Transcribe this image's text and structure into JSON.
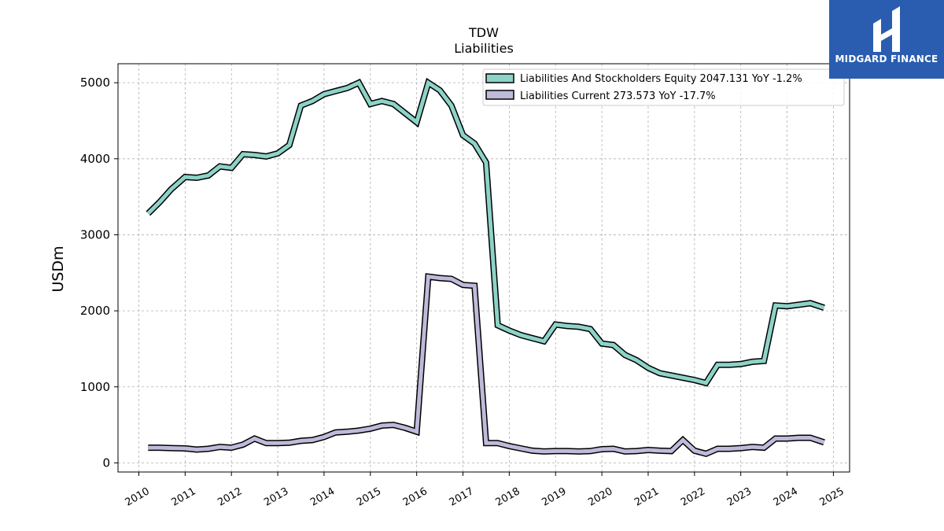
{
  "brand": {
    "name": "MIDGARD FINANCE",
    "color": "#2a5db0"
  },
  "chart_data": {
    "type": "line",
    "title": "TDW",
    "subtitle": "Liabilities",
    "xlabel": "",
    "ylabel": "USDm",
    "ylim": [
      -120,
      5250
    ],
    "xlim": [
      2009.55,
      2025.35
    ],
    "grid": true,
    "legend_position": "top-right",
    "x_ticks": [
      "2010",
      "2011",
      "2012",
      "2013",
      "2014",
      "2015",
      "2016",
      "2017",
      "2018",
      "2019",
      "2020",
      "2021",
      "2022",
      "2023",
      "2024",
      "2025"
    ],
    "y_ticks": [
      0,
      1000,
      2000,
      3000,
      4000,
      5000
    ],
    "series": [
      {
        "name": "Liabilities And Stockholders Equity",
        "legend_label": "Liabilities And Stockholders Equity  2047.131 YoY -1.2%",
        "color": "#8dd3c7",
        "x": [
          2010.2,
          2010.45,
          2010.7,
          2011.0,
          2011.25,
          2011.5,
          2011.75,
          2012.0,
          2012.25,
          2012.5,
          2012.75,
          2013.0,
          2013.25,
          2013.5,
          2013.75,
          2014.0,
          2014.25,
          2014.5,
          2014.75,
          2015.0,
          2015.25,
          2015.5,
          2015.75,
          2016.0,
          2016.25,
          2016.5,
          2016.75,
          2017.0,
          2017.25,
          2017.5,
          2017.75,
          2018.0,
          2018.25,
          2018.5,
          2018.75,
          2019.0,
          2019.25,
          2019.5,
          2019.75,
          2020.0,
          2020.25,
          2020.5,
          2020.75,
          2021.0,
          2021.25,
          2021.5,
          2021.75,
          2022.0,
          2022.25,
          2022.5,
          2022.75,
          2023.0,
          2023.25,
          2023.5,
          2023.75,
          2024.0,
          2024.25,
          2024.5,
          2024.8
        ],
        "values": [
          3280,
          3430,
          3600,
          3760,
          3750,
          3780,
          3900,
          3880,
          4060,
          4050,
          4030,
          4070,
          4180,
          4700,
          4760,
          4850,
          4890,
          4930,
          5000,
          4720,
          4760,
          4720,
          4600,
          4480,
          5000,
          4900,
          4700,
          4310,
          4200,
          3950,
          1810,
          1740,
          1680,
          1640,
          1600,
          1820,
          1800,
          1790,
          1760,
          1570,
          1550,
          1420,
          1350,
          1250,
          1180,
          1150,
          1120,
          1090,
          1050,
          1290,
          1290,
          1300,
          1330,
          1340,
          2070,
          2060,
          2080,
          2100,
          2040
        ]
      },
      {
        "name": "Liabilities Current",
        "legend_label": "Liabilities Current  273.573 YoY -17.7%",
        "color": "#bebada",
        "x": [
          2010.2,
          2010.45,
          2010.7,
          2011.0,
          2011.25,
          2011.5,
          2011.75,
          2012.0,
          2012.25,
          2012.5,
          2012.75,
          2013.0,
          2013.25,
          2013.5,
          2013.75,
          2014.0,
          2014.25,
          2014.5,
          2014.75,
          2015.0,
          2015.25,
          2015.5,
          2015.75,
          2016.0,
          2016.25,
          2016.5,
          2016.75,
          2017.0,
          2017.25,
          2017.5,
          2017.75,
          2018.0,
          2018.25,
          2018.5,
          2018.75,
          2019.0,
          2019.25,
          2019.5,
          2019.75,
          2020.0,
          2020.25,
          2020.5,
          2020.75,
          2021.0,
          2021.25,
          2021.5,
          2021.75,
          2022.0,
          2022.25,
          2022.5,
          2022.75,
          2023.0,
          2023.25,
          2023.5,
          2023.75,
          2024.0,
          2024.25,
          2024.5,
          2024.8
        ],
        "values": [
          200,
          200,
          195,
          190,
          175,
          185,
          210,
          200,
          240,
          320,
          260,
          260,
          265,
          290,
          300,
          340,
          400,
          410,
          425,
          450,
          490,
          500,
          460,
          410,
          2450,
          2430,
          2420,
          2340,
          2330,
          260,
          260,
          220,
          190,
          160,
          150,
          155,
          155,
          150,
          155,
          180,
          185,
          150,
          155,
          170,
          160,
          155,
          300,
          160,
          120,
          185,
          185,
          195,
          210,
          200,
          320,
          320,
          330,
          330,
          270
        ]
      }
    ]
  }
}
